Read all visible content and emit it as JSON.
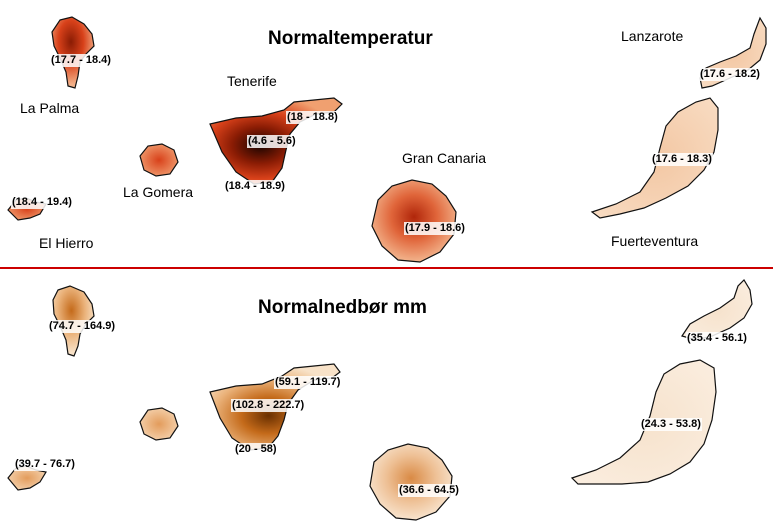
{
  "map": {
    "title_top_cut": "",
    "temperature": {
      "title": "Normaltemperatur",
      "island_names": {
        "la_palma": "La Palma",
        "tenerife": "Tenerife",
        "la_gomera": "La Gomera",
        "el_hierro": "El Hierro",
        "gran_canaria": "Gran Canaria",
        "lanzarote": "Lanzarote",
        "fuerteventura": "Fuerteventura"
      },
      "ranges": {
        "la_palma": "(17.7 - 18.4)",
        "tenerife_east": "(18 - 18.8)",
        "tenerife_peak": "(4.6 - 5.6)",
        "tenerife_coast": "(18.4 - 18.9)",
        "el_hierro": "(18.4 - 19.4)",
        "gran_canaria": "(17.9 - 18.6)",
        "lanzarote": "(17.6 - 18.2)",
        "fuerteventura": "(17.6 - 18.3)"
      }
    },
    "precipitation": {
      "title": "Normalnedbør mm",
      "ranges": {
        "la_palma": "(74.7 - 164.9)",
        "tenerife_east": "(59.1 - 119.7)",
        "tenerife_peak": "(102.8 - 222.7)",
        "tenerife_coast": "(20 - 58)",
        "el_hierro": "(39.7 - 76.7)",
        "gran_canaria": "(36.6 - 64.5)",
        "lanzarote": "(35.4 - 56.1)",
        "fuerteventura": "(24.3 - 53.8)"
      }
    },
    "colors": {
      "divider": "#cc0000",
      "outline": "#111111",
      "temp_low": "#f6d9bf",
      "temp_mid": "#ec9a6a",
      "temp_high": "#d8411a",
      "temp_peak": "#1a0400",
      "precip_low": "#f8e6cf",
      "precip_mid": "#eab27a",
      "precip_high": "#c46a1a",
      "precip_peak": "#6a3000"
    }
  }
}
